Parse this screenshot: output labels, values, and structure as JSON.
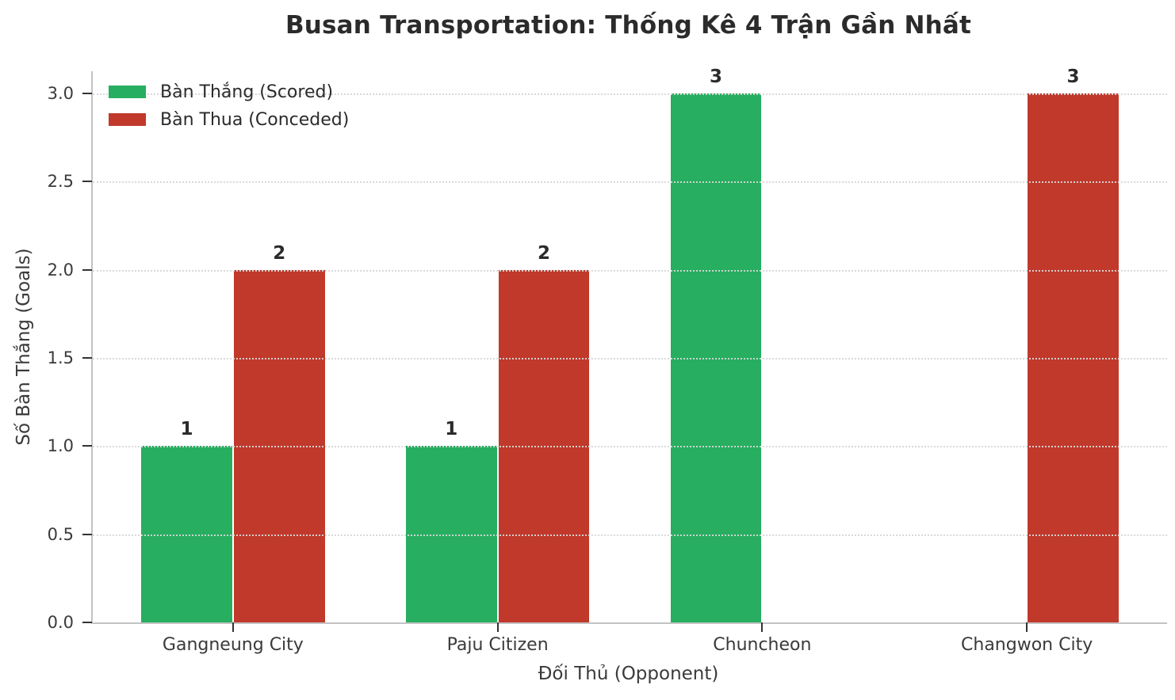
{
  "chart_data": {
    "type": "bar",
    "title": "Busan Transportation: Thống Kê 4 Trận Gần Nhất",
    "xlabel": "Đối Thủ (Opponent)",
    "ylabel": "Số Bàn Thắng (Goals)",
    "categories": [
      "Gangneung City",
      "Paju Citizen",
      "Chuncheon",
      "Changwon City"
    ],
    "series": [
      {
        "name": "Bàn Thắng (Scored)",
        "color": "#27ae60",
        "values": [
          1,
          1,
          3,
          0
        ]
      },
      {
        "name": "Bàn Thua (Conceded)",
        "color": "#c0392b",
        "values": [
          2,
          2,
          0,
          3
        ]
      }
    ],
    "bar_value_labels": [
      [
        "1",
        "1",
        "3",
        ""
      ],
      [
        "2",
        "2",
        "",
        "3"
      ]
    ],
    "ylim": [
      0.0,
      3.125
    ],
    "ytick_labels": [
      "0.0",
      "0.5",
      "1.0",
      "1.5",
      "2.0",
      "2.5",
      "3.0"
    ],
    "grid": "horizontal dotted, drawn above bars",
    "legend_position": "upper left, no frame",
    "bar_width_units": 0.35,
    "text_color": "#2b2b2b",
    "grid_color": "#d7d7d7",
    "spine_color": "#c3c3c3"
  }
}
